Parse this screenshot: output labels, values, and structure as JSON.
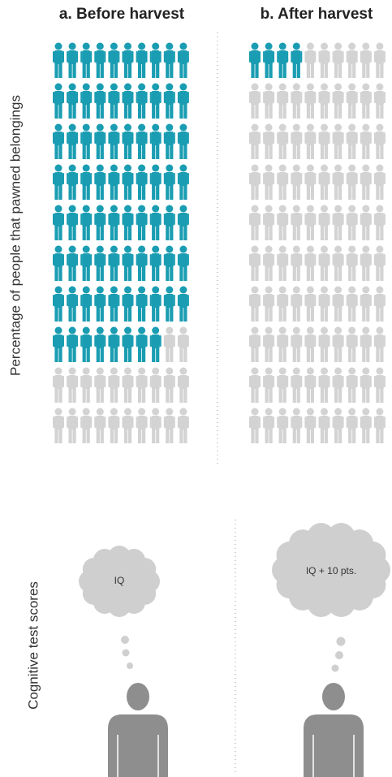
{
  "chart_data": [
    {
      "type": "pictogram",
      "title": "a. Before harvest",
      "y_label": "Percentage of people that pawned belongings",
      "value": 78,
      "color": "#1a9db2",
      "empty_color": "#d3d3d3"
    },
    {
      "type": "pictogram",
      "title": "b. After harvest",
      "value": 4,
      "color": "#1a9db2",
      "empty_color": "#d3d3d3"
    }
  ],
  "cognitive": {
    "label": "Cognitive test scores",
    "before": "IQ",
    "after": "IQ + 10 pts."
  }
}
